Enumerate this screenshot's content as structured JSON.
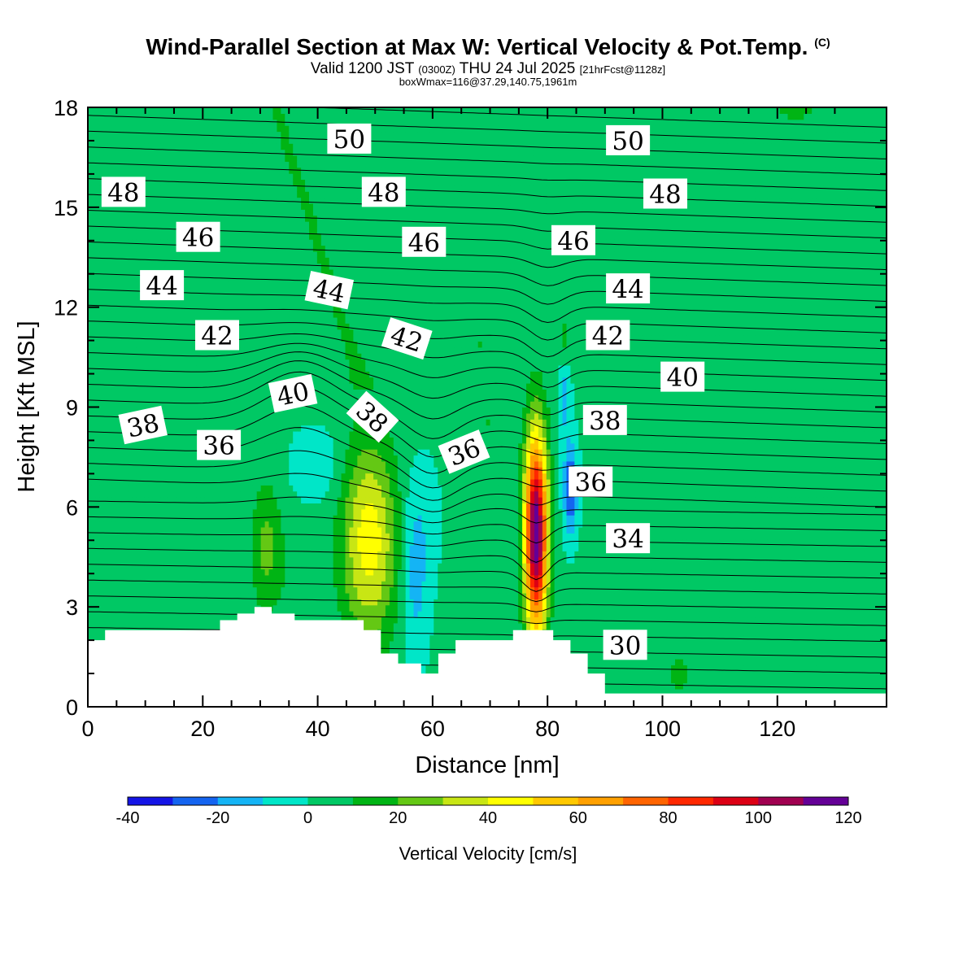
{
  "title": "Wind-Parallel Section at Max W: Vertical Velocity & Pot.Temp.",
  "title_mark": "(C)",
  "subtitle_pre": "Valid 1200 JST",
  "subtitle_utc": "(0300Z)",
  "subtitle_date": "THU 24 Jul 2025",
  "subtitle_fcst": "[21hrFcst@1128z]",
  "subsubtitle": "boxWmax=116@37.29,140.75,1961m",
  "chart_data": {
    "type": "heatmap",
    "xlabel": "Distance [nm]",
    "ylabel": "Height [Kft MSL]",
    "xlim": [
      0,
      139
    ],
    "ylim": [
      0,
      18
    ],
    "xticks": [
      "0",
      "20",
      "40",
      "60",
      "80",
      "100",
      "120"
    ],
    "yticks": [
      "0",
      "3",
      "6",
      "9",
      "12",
      "15",
      "18"
    ],
    "grid": false,
    "colorbar": {
      "label": "Vertical Velocity [cm/s]",
      "bounds": [
        -40,
        -30,
        -20,
        -10,
        0,
        10,
        20,
        30,
        40,
        50,
        60,
        70,
        80,
        90,
        100,
        110,
        120
      ],
      "tick_labels": [
        "-40",
        "-20",
        "0",
        "20",
        "40",
        "60",
        "80",
        "100",
        "120"
      ],
      "colors": [
        "#1414e6",
        "#1464f0",
        "#14b4f5",
        "#00e6c8",
        "#00c864",
        "#00b414",
        "#64c814",
        "#c8e614",
        "#ffff00",
        "#ffc800",
        "#ffa000",
        "#ff6400",
        "#ff2800",
        "#dc0014",
        "#a00050",
        "#640096"
      ]
    },
    "theta_contour_labels": [
      {
        "label": "50",
        "x": 45.5,
        "y": 17.05,
        "rot": 0
      },
      {
        "label": "50",
        "x": 94.0,
        "y": 17.0,
        "rot": 0
      },
      {
        "label": "48",
        "x": 6.2,
        "y": 15.45,
        "rot": 0
      },
      {
        "label": "48",
        "x": 51.5,
        "y": 15.45,
        "rot": 0
      },
      {
        "label": "48",
        "x": 100.5,
        "y": 15.4,
        "rot": 0
      },
      {
        "label": "46",
        "x": 19.2,
        "y": 14.1,
        "rot": 0
      },
      {
        "label": "46",
        "x": 58.5,
        "y": 13.95,
        "rot": 0
      },
      {
        "label": "46",
        "x": 84.5,
        "y": 14.0,
        "rot": 0
      },
      {
        "label": "44",
        "x": 12.9,
        "y": 12.65,
        "rot": 0
      },
      {
        "label": "44",
        "x": 42.0,
        "y": 12.5,
        "rot": 12
      },
      {
        "label": "44",
        "x": 94.0,
        "y": 12.55,
        "rot": 0
      },
      {
        "label": "42",
        "x": 22.5,
        "y": 11.15,
        "rot": 0
      },
      {
        "label": "42",
        "x": 55.5,
        "y": 11.05,
        "rot": 18
      },
      {
        "label": "42",
        "x": 90.5,
        "y": 11.15,
        "rot": 0
      },
      {
        "label": "40",
        "x": 35.7,
        "y": 9.4,
        "rot": -12
      },
      {
        "label": "40",
        "x": 103.5,
        "y": 9.9,
        "rot": 0
      },
      {
        "label": "38",
        "x": 9.6,
        "y": 8.45,
        "rot": -12
      },
      {
        "label": "38",
        "x": 49.5,
        "y": 8.7,
        "rot": 42
      },
      {
        "label": "38",
        "x": 90.0,
        "y": 8.6,
        "rot": 0
      },
      {
        "label": "36",
        "x": 22.8,
        "y": 7.85,
        "rot": 0
      },
      {
        "label": "36",
        "x": 65.5,
        "y": 7.65,
        "rot": -22
      },
      {
        "label": "36",
        "x": 87.5,
        "y": 6.75,
        "rot": 0
      },
      {
        "label": "34",
        "x": 94.0,
        "y": 5.05,
        "rot": 0
      },
      {
        "label": "30",
        "x": 93.5,
        "y": 1.85,
        "rot": 0
      }
    ],
    "terrain_kft": [
      [
        0,
        2
      ],
      [
        3,
        2
      ],
      [
        3,
        2.3
      ],
      [
        23,
        2.3
      ],
      [
        23,
        2.6
      ],
      [
        26,
        2.6
      ],
      [
        26,
        2.8
      ],
      [
        29,
        2.8
      ],
      [
        29,
        3
      ],
      [
        32,
        3
      ],
      [
        32,
        2.8
      ],
      [
        36,
        2.8
      ],
      [
        36,
        2.6
      ],
      [
        48,
        2.6
      ],
      [
        48,
        2.3
      ],
      [
        51,
        2.3
      ],
      [
        51,
        1.6
      ],
      [
        54,
        1.6
      ],
      [
        54,
        1.3
      ],
      [
        58,
        1.3
      ],
      [
        58,
        1
      ],
      [
        61,
        1
      ],
      [
        61,
        1.6
      ],
      [
        64,
        1.6
      ],
      [
        64,
        2
      ],
      [
        74,
        2
      ],
      [
        74,
        2.3
      ],
      [
        81,
        2.3
      ],
      [
        81,
        2
      ],
      [
        84,
        2
      ],
      [
        84,
        1.6
      ],
      [
        87,
        1.6
      ],
      [
        87,
        1
      ],
      [
        90,
        1
      ],
      [
        90,
        0.4
      ],
      [
        139,
        0.4
      ]
    ]
  }
}
